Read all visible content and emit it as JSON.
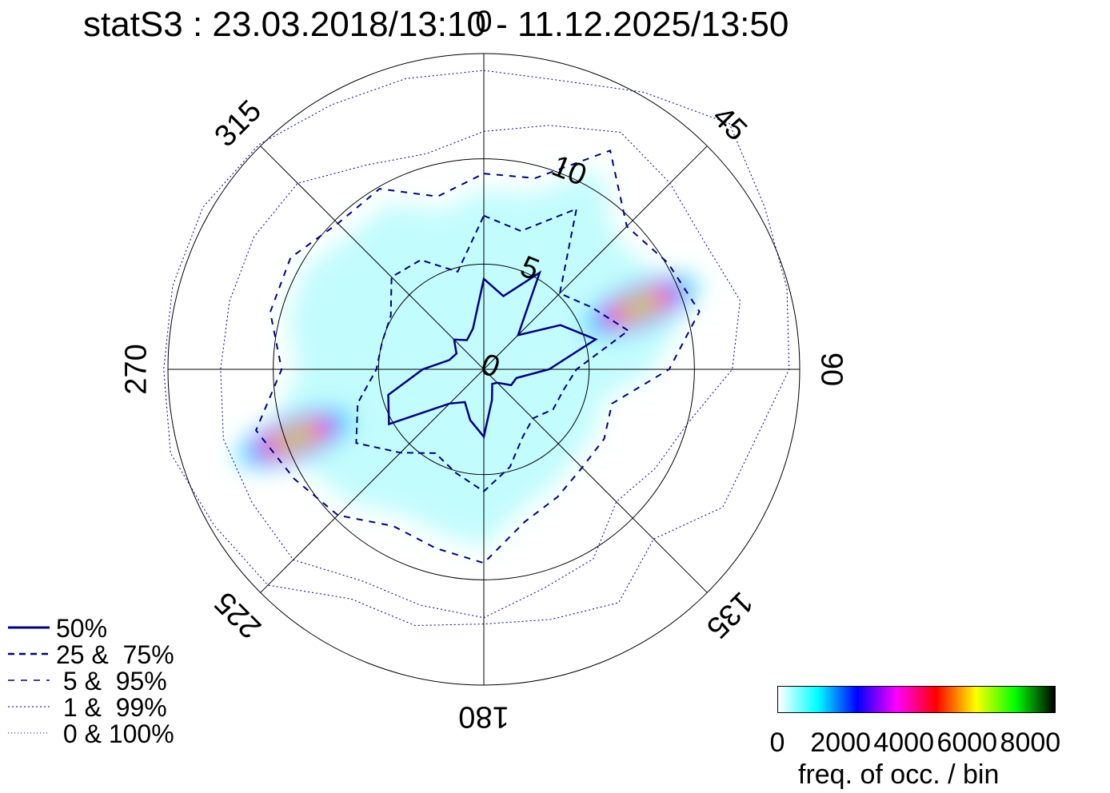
{
  "title": "statS3 : 23.03.2018/13:10 - 11.12.2025/13:50",
  "chart_data": {
    "type": "polar",
    "direction_labels": [
      "0",
      "45",
      "90",
      "135",
      "180",
      "225",
      "270",
      "315"
    ],
    "radius_labels": [
      "0",
      "5",
      "10"
    ],
    "rmax": 15,
    "rings": [
      5,
      10,
      15
    ],
    "angles_deg": [
      0,
      15,
      30,
      45,
      60,
      75,
      90,
      105,
      120,
      135,
      150,
      165,
      180,
      195,
      210,
      225,
      240,
      255,
      270,
      285,
      300,
      315,
      330,
      345
    ],
    "series": [
      {
        "name": "50%",
        "values": [
          4.3,
          3.6,
          5.3,
          2.3,
          4.2,
          5.5,
          3.1,
          1.6,
          1.5,
          0.9,
          0.8,
          1.5,
          3.2,
          2.5,
          1.8,
          2.3,
          5.2,
          4.7,
          2.9,
          1.7,
          1.5,
          2.0,
          1.6,
          2.0
        ],
        "style": "solid"
      },
      {
        "name": "25 & 75%",
        "values": [
          7.3,
          6.8,
          8.8,
          5.1,
          5.9,
          7.1,
          4.4,
          3.9,
          3.8,
          3.3,
          3.7,
          4.8,
          5.8,
          5.1,
          4.6,
          5.6,
          7.0,
          6.2,
          5.1,
          5.0,
          5.1,
          6.2,
          6.0,
          4.8
        ],
        "style": "dashed"
      },
      {
        "name": "5 & 95%",
        "values": [
          9.3,
          9.4,
          12.0,
          9.6,
          10.1,
          10.6,
          8.8,
          6.3,
          6.6,
          6.6,
          7.0,
          7.5,
          9.2,
          8.8,
          8.6,
          9.8,
          10.4,
          11.2,
          9.6,
          10.5,
          10.6,
          9.8,
          9.9,
          8.5
        ],
        "style": "dashed"
      },
      {
        "name": "1 & 99%",
        "values": [
          11.3,
          12.0,
          13.0,
          12.5,
          12.1,
          12.6,
          11.8,
          10.0,
          9.4,
          8.9,
          10.4,
          10.8,
          11.8,
          11.6,
          11.6,
          12.8,
          12.7,
          12.8,
          12.5,
          12.5,
          12.6,
          12.5,
          11.2,
          10.6
        ],
        "style": "dotted"
      },
      {
        "name": "0 & 100%",
        "values": [
          14.2,
          14.2,
          15.2,
          16.5,
          15.4,
          14.9,
          14.5,
          13.3,
          13.1,
          11.4,
          12.8,
          12.3,
          12.1,
          12.6,
          12.6,
          14.5,
          14.8,
          15.4,
          15.2,
          15.3,
          15.4,
          15.1,
          14.5,
          14.3
        ],
        "style": "dotted"
      }
    ],
    "hotspots": [
      {
        "dir_deg": 68,
        "speed": 8.0,
        "intensity": 1.0
      },
      {
        "dir_deg": 250,
        "speed": 9.5,
        "intensity": 1.0
      }
    ],
    "colorbar": {
      "label": "freq. of occ. / bin",
      "ticks": [
        "0",
        "2000",
        "4000",
        "6000",
        "8000"
      ],
      "tick_values": [
        0,
        2000,
        4000,
        6000,
        8000
      ],
      "vmax": 8800,
      "colors": [
        "#ffffff",
        "#00ffff",
        "#0000ff",
        "#ff00ff",
        "#ff0000",
        "#ffff00",
        "#00ff00",
        "#000000"
      ]
    }
  },
  "legend": [
    {
      "label": "50%",
      "style": "solid"
    },
    {
      "label": "25 &  75%",
      "style": "dashed"
    },
    {
      "label": " 5 &  95%",
      "style": "dashed"
    },
    {
      "label": " 1 &  99%",
      "style": "dotted"
    },
    {
      "label": " 0 & 100%",
      "style": "dotted"
    }
  ]
}
